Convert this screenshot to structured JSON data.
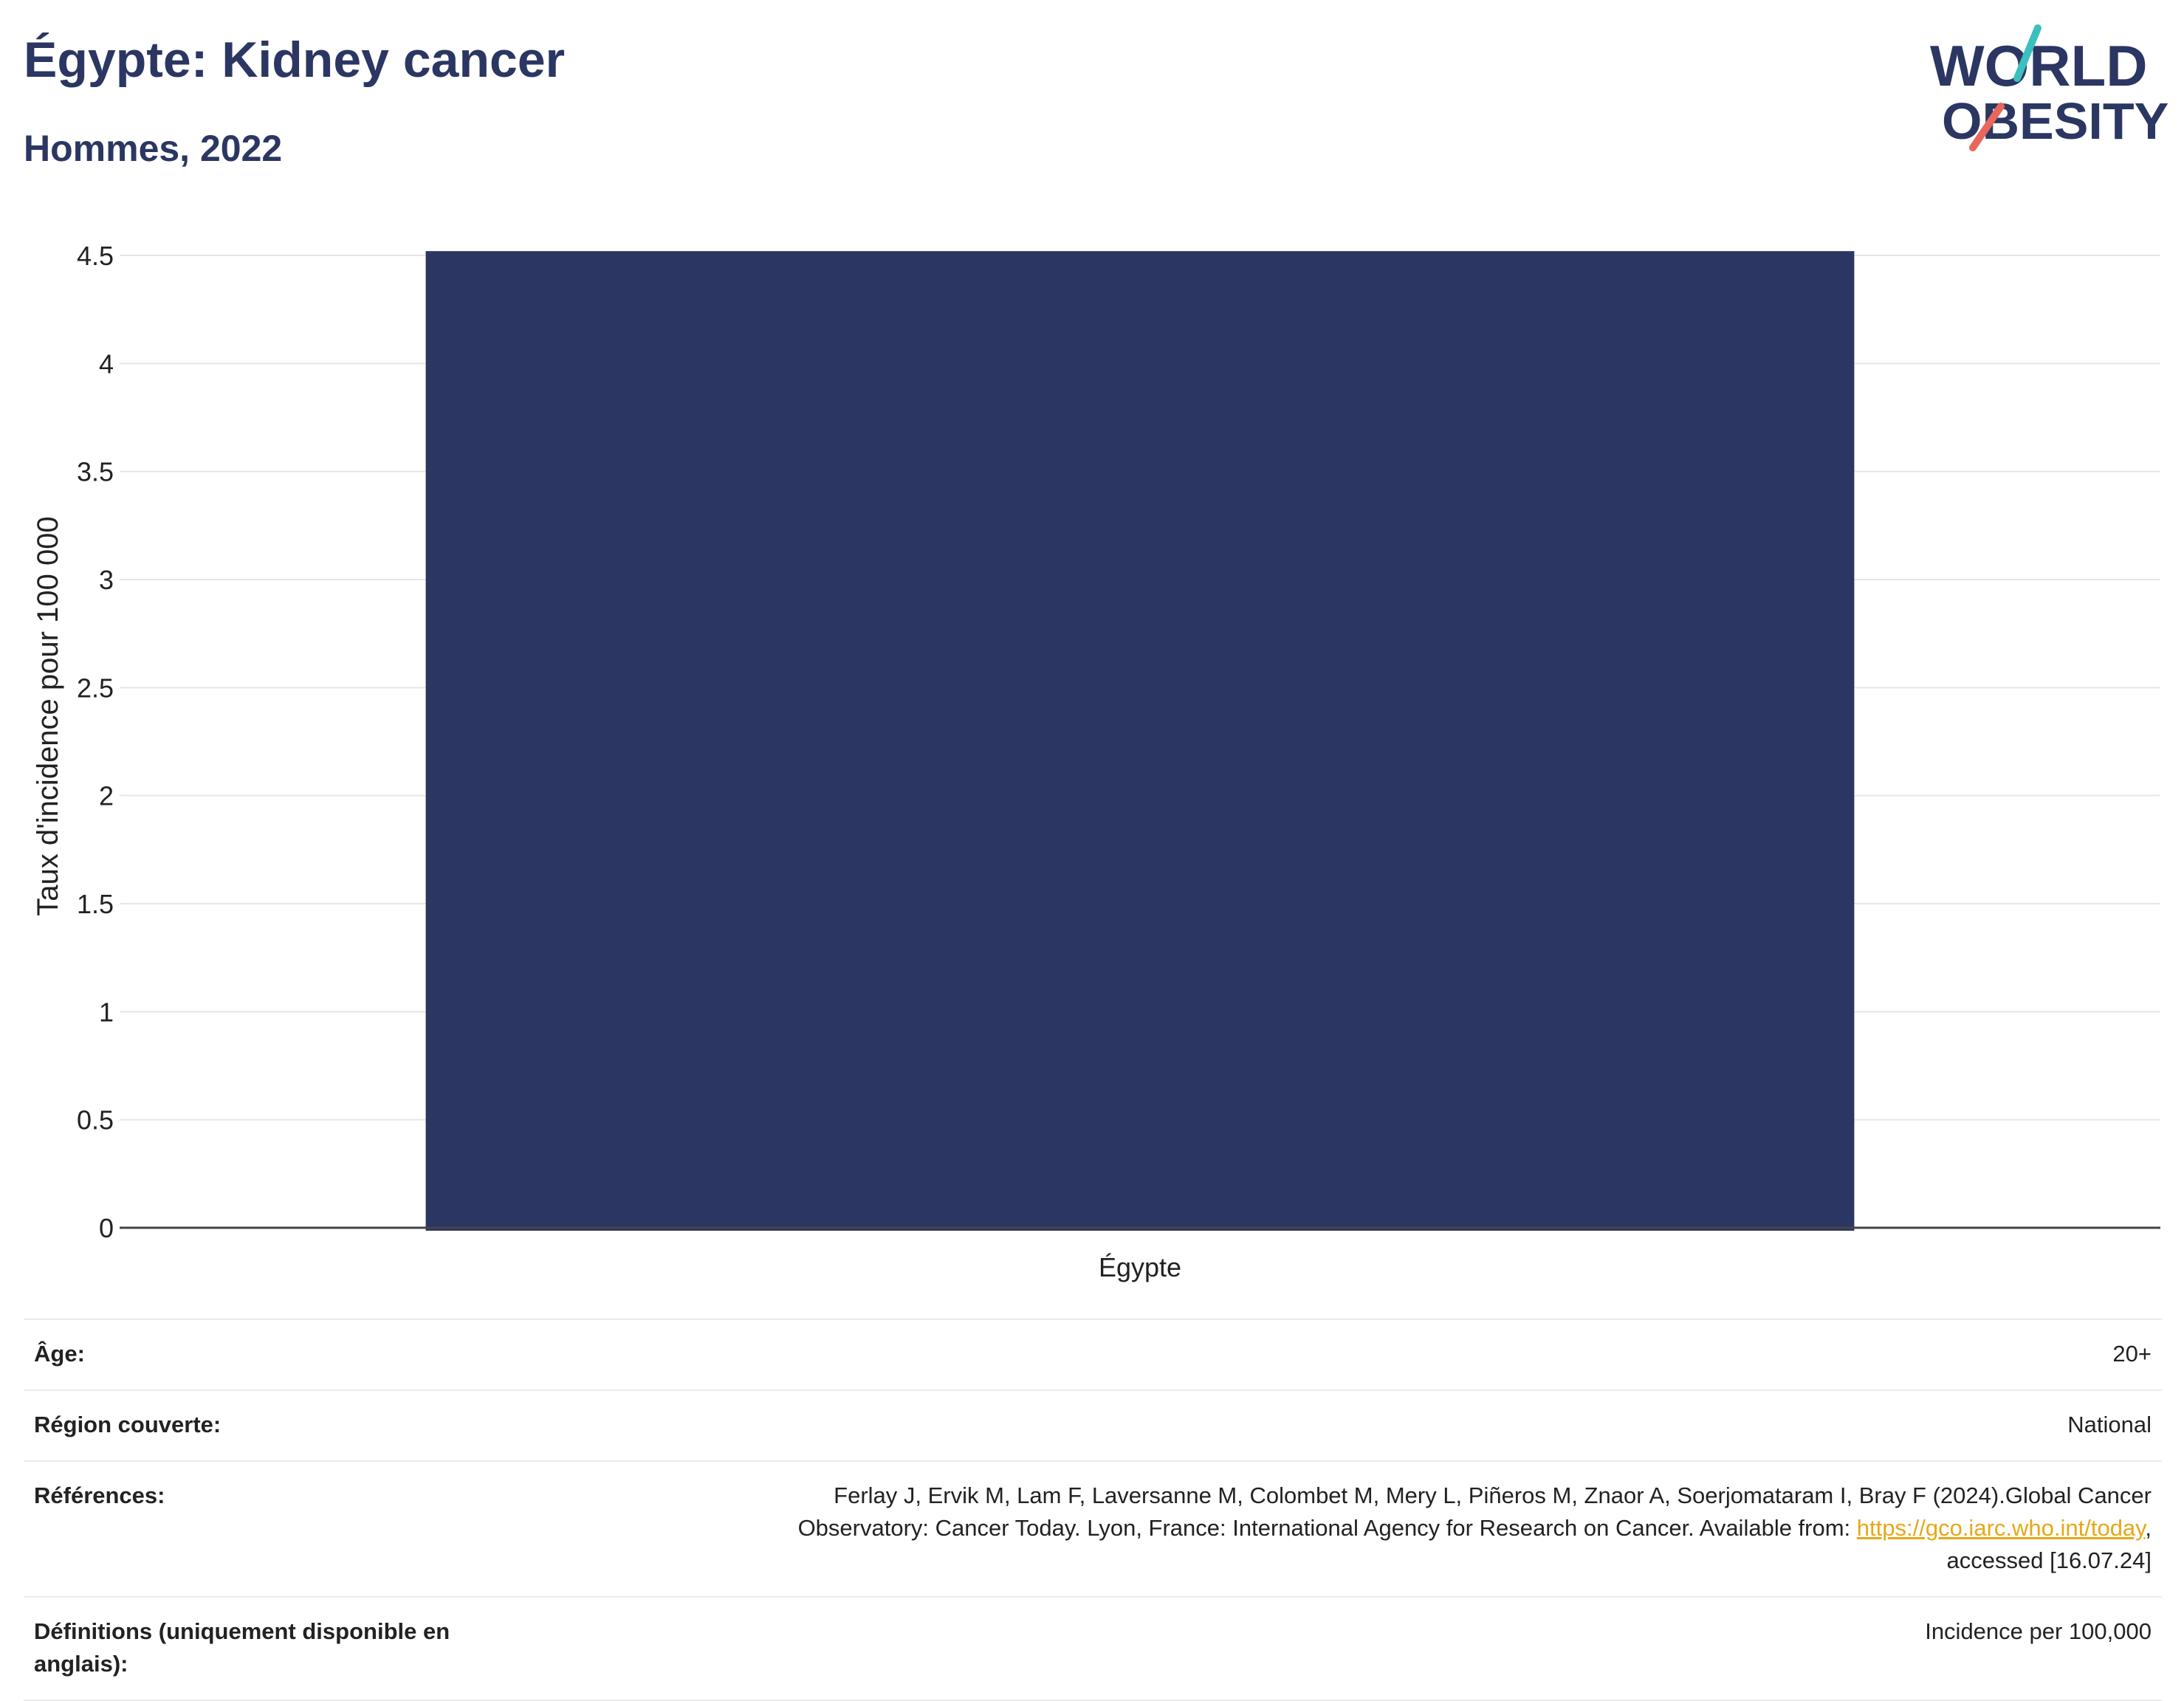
{
  "header": {
    "title": "Égypte: Kidney cancer",
    "subtitle": "Hommes, 2022"
  },
  "logo": {
    "line1": "WORLD",
    "line2": "OBESITY",
    "colors": {
      "navy": "#2b3762",
      "teal": "#3bbfbf",
      "coral": "#e8675a"
    }
  },
  "chart_data": {
    "type": "bar",
    "categories": [
      "Égypte"
    ],
    "values": [
      4.52
    ],
    "ylabel": "Taux d'incidence pour 100 000",
    "xlabel": "",
    "ylim": [
      0,
      4.5
    ],
    "yticks": [
      0,
      0.5,
      1,
      1.5,
      2,
      2.5,
      3,
      3.5,
      4,
      4.5
    ],
    "ytick_labels": [
      "0",
      "0.5",
      "1",
      "1.5",
      "2",
      "2.5",
      "3",
      "3.5",
      "4",
      "4.5"
    ],
    "bar_color": "#2b3762",
    "grid": true,
    "legend": "none"
  },
  "info": {
    "age_label": "Âge:",
    "age_value": "20+",
    "region_label": "Région couverte:",
    "region_value": "National",
    "references_label": "Références:",
    "references_line1": "Ferlay J, Ervik M, Lam F, Laversanne M, Colombet M, Mery L, Piñeros M, Znaor A, Soerjomataram I, Bray F (2024).Global Cancer",
    "references_line2_prefix": "Observatory: Cancer Today. Lyon, France: International Agency for Research on Cancer. Available from: ",
    "references_link": "https://gco.iarc.who.int/today",
    "references_line2_suffix": ",",
    "references_line3": "accessed [16.07.24]",
    "definitions_label": "Définitions (uniquement disponible en anglais):",
    "definitions_value": "Incidence per 100,000"
  }
}
